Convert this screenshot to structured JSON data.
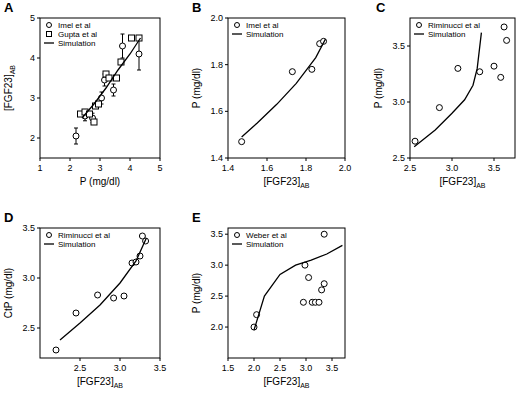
{
  "chart_data": [
    {
      "type": "scatter",
      "title": "A",
      "x_label": "P (mg/dl)",
      "y_label": "[FGF23]AB",
      "color": "#000000",
      "xlim": [
        1,
        5
      ],
      "xticks": [
        1,
        2,
        3,
        4,
        5
      ],
      "ylim": [
        1.5,
        5
      ],
      "yticks": [
        2,
        3,
        4,
        5
      ],
      "legend": "upper-left",
      "series": [
        {
          "name": "Imel et al",
          "type": "scatter",
          "marker": "circle",
          "x": [
            2.2,
            2.5,
            2.75,
            3.05,
            3.15,
            3.45,
            3.75,
            4.3
          ],
          "values": [
            2.05,
            2.55,
            2.5,
            3.0,
            3.45,
            3.2,
            4.3,
            4.1
          ],
          "errors": [
            0.2,
            0.12,
            0.12,
            0.15,
            0.15,
            0.15,
            0.3,
            0.4
          ]
        },
        {
          "name": "Gupta et al",
          "type": "scatter",
          "marker": "square",
          "x": [
            2.35,
            2.5,
            2.65,
            2.8,
            2.85,
            2.95,
            3.2,
            3.3,
            3.55,
            3.7,
            4.05,
            4.3
          ],
          "values": [
            2.6,
            2.65,
            2.6,
            2.4,
            2.8,
            2.85,
            3.6,
            3.5,
            3.5,
            3.9,
            4.5,
            4.5
          ]
        },
        {
          "name": "Simulation",
          "type": "line",
          "line_style": "solid",
          "x": [
            2.4,
            2.8,
            3.2,
            3.6,
            4.0,
            4.35
          ],
          "values": [
            2.5,
            2.85,
            3.25,
            3.7,
            4.1,
            4.5
          ]
        }
      ]
    },
    {
      "type": "scatter",
      "title": "B",
      "x_label": "[FGF23]AB",
      "y_label": "P (mg/dl)",
      "color": "#000000",
      "xlim": [
        1.4,
        2.0
      ],
      "xticks": [
        1.4,
        1.6,
        1.8,
        {
          "value": 2,
          "label": "2.0"
        }
      ],
      "ylim": [
        1.4,
        2.0
      ],
      "yticks": [
        1.4,
        1.6,
        1.8,
        {
          "value": 2,
          "label": "2.0"
        }
      ],
      "legend": "upper-left",
      "series": [
        {
          "name": "Imel et al",
          "type": "scatter",
          "marker": "circle",
          "x": [
            1.47,
            1.73,
            1.83,
            1.87,
            1.89
          ],
          "values": [
            1.47,
            1.77,
            1.78,
            1.89,
            1.9
          ]
        },
        {
          "name": "Simulation",
          "type": "line",
          "line_style": "solid",
          "x": [
            1.47,
            1.55,
            1.65,
            1.75,
            1.85,
            1.9
          ],
          "values": [
            1.49,
            1.55,
            1.63,
            1.72,
            1.83,
            1.91
          ]
        }
      ]
    },
    {
      "type": "scatter",
      "title": "C",
      "x_label": "[FGF23]AB",
      "y_label": "P (mg/dl)",
      "color": "#000000",
      "xlim": [
        2.5,
        3.75
      ],
      "xticks": [
        2.5,
        {
          "value": 3,
          "label": "3.0"
        },
        3.5
      ],
      "ylim": [
        2.5,
        3.75
      ],
      "yticks": [
        2.5,
        {
          "value": 3,
          "label": "3.0"
        },
        3.5
      ],
      "legend": "upper-left",
      "series": [
        {
          "name": "Riminucci et al",
          "type": "scatter",
          "marker": "circle",
          "x": [
            2.56,
            2.85,
            3.07,
            3.33,
            3.5,
            3.58,
            3.62,
            3.65
          ],
          "values": [
            2.65,
            2.95,
            3.3,
            3.27,
            3.32,
            3.22,
            3.67,
            3.55
          ]
        },
        {
          "name": "Simulation",
          "type": "line",
          "line_style": "solid",
          "x": [
            2.55,
            2.8,
            3.0,
            3.15,
            3.25,
            3.3,
            3.35
          ],
          "values": [
            2.6,
            2.75,
            2.9,
            3.02,
            3.15,
            3.3,
            3.62
          ]
        }
      ]
    },
    {
      "type": "scatter",
      "title": "D",
      "x_label": "[FGF23]AB",
      "y_label": "CtP (mg/dl)",
      "color": "#000000",
      "xlim": [
        2.0,
        3.5
      ],
      "xticks": [
        2.5,
        {
          "value": 3,
          "label": "3.0"
        },
        3.5
      ],
      "ylim": [
        2.2,
        3.5
      ],
      "yticks": [
        2.5,
        {
          "value": 3,
          "label": "3.0"
        },
        3.5
      ],
      "legend": "upper-left",
      "series": [
        {
          "name": "Riminucci et al",
          "type": "scatter",
          "marker": "circle",
          "x": [
            2.2,
            2.45,
            2.72,
            2.92,
            3.05,
            3.15,
            3.2,
            3.25,
            3.28,
            3.32
          ],
          "values": [
            2.28,
            2.65,
            2.83,
            2.8,
            2.82,
            3.15,
            3.16,
            3.22,
            3.42,
            3.37
          ]
        },
        {
          "name": "Simulation",
          "type": "line",
          "line_style": "solid",
          "x": [
            2.25,
            2.5,
            2.75,
            3.0,
            3.2,
            3.33
          ],
          "values": [
            2.38,
            2.55,
            2.73,
            2.95,
            3.17,
            3.4
          ]
        }
      ]
    },
    {
      "type": "scatter",
      "title": "E",
      "x_label": "[FGF23]AB",
      "y_label": "P (mg/dl)",
      "color": "#000000",
      "xlim": [
        1.5,
        3.75
      ],
      "xticks": [
        1.5,
        {
          "value": 2,
          "label": "2.0"
        },
        2.5,
        {
          "value": 3,
          "label": "3.0"
        },
        3.5
      ],
      "ylim": [
        1.5,
        3.6
      ],
      "yticks": [
        {
          "value": 2,
          "label": "2.0"
        },
        2.5,
        {
          "value": 3,
          "label": "3.0"
        },
        3.5
      ],
      "legend": "upper-left",
      "series": [
        {
          "name": "Weber et al",
          "type": "scatter",
          "marker": "circle",
          "x": [
            2.0,
            2.05,
            2.95,
            2.98,
            3.05,
            3.12,
            3.18,
            3.25,
            3.3,
            3.35,
            3.35
          ],
          "values": [
            2.0,
            2.2,
            2.4,
            3.0,
            2.8,
            2.4,
            2.4,
            2.4,
            2.6,
            2.7,
            3.5
          ]
        },
        {
          "name": "Simulation",
          "type": "line",
          "line_style": "solid",
          "x": [
            2.0,
            2.2,
            2.5,
            2.8,
            3.1,
            3.4,
            3.7
          ],
          "values": [
            1.95,
            2.5,
            2.85,
            3.0,
            3.08,
            3.18,
            3.32
          ]
        }
      ]
    }
  ]
}
